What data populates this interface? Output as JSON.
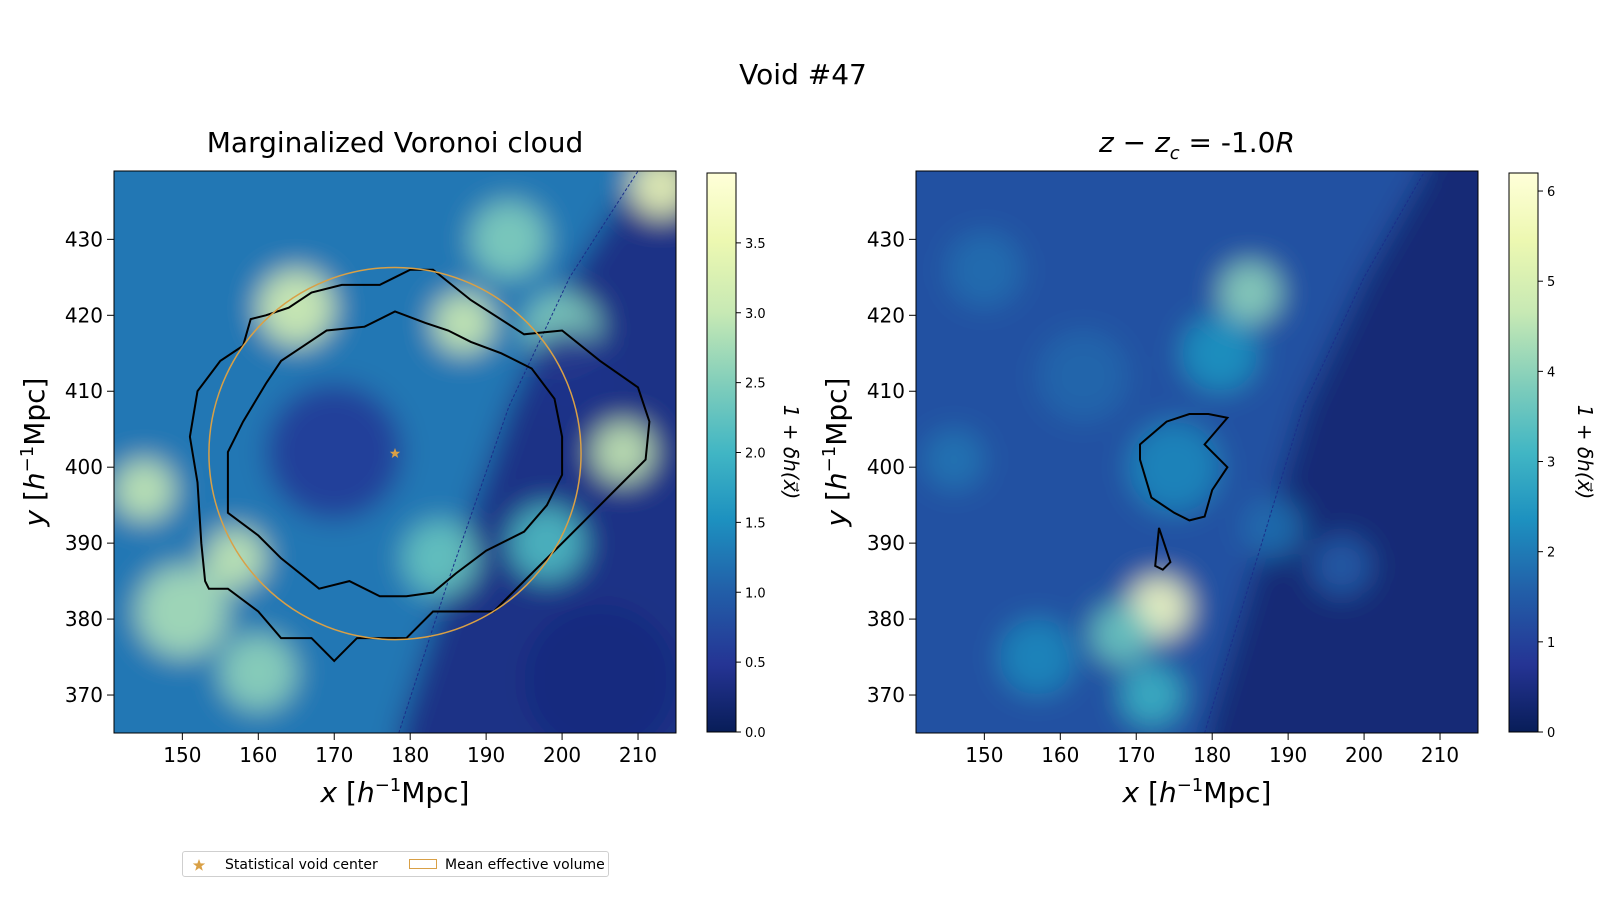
{
  "figure": {
    "suptitle": "Void #47"
  },
  "chart_data": [
    {
      "type": "heatmap",
      "title": "Marginalized Voronoi cloud",
      "xlabel_var": "x",
      "ylabel_var": "y",
      "axis_unit_open": "[",
      "axis_unit_base": "h",
      "axis_unit_exp": "−1",
      "axis_unit_tail": "Mpc]",
      "xlim": [
        141,
        215
      ],
      "ylim": [
        365,
        439
      ],
      "x_ticks": [
        150,
        160,
        170,
        180,
        190,
        200,
        210
      ],
      "y_ticks": [
        370,
        380,
        390,
        400,
        410,
        420,
        430
      ],
      "colorbar": {
        "label": "1 + δh(x⃗)",
        "range": [
          0.0,
          4.0
        ],
        "ticks": [
          0.0,
          0.5,
          1.0,
          1.5,
          2.0,
          2.5,
          3.0,
          3.5
        ],
        "tick_labels": [
          "0.0",
          "0.5",
          "1.0",
          "1.5",
          "2.0",
          "2.5",
          "3.0",
          "3.5"
        ]
      },
      "void_center": {
        "x": 178,
        "y": 401.8
      },
      "mean_effective_volume_circle": {
        "cx": 178,
        "cy": 401.8,
        "r": 24.5
      },
      "survey_boundary": [
        [
          178.5,
          365
        ],
        [
          185,
          385
        ],
        [
          193,
          408
        ],
        [
          201,
          425
        ],
        [
          210,
          439
        ]
      ],
      "contours": [
        [
          [
            153.5,
            384
          ],
          [
            156,
            384
          ],
          [
            160,
            381
          ],
          [
            163,
            377.5
          ],
          [
            167,
            377.5
          ],
          [
            170,
            374.5
          ],
          [
            173,
            377.5
          ],
          [
            176.5,
            377.5
          ],
          [
            179.5,
            377.5
          ],
          [
            183,
            381
          ],
          [
            186,
            381
          ],
          [
            191,
            381
          ],
          [
            196,
            386
          ],
          [
            203,
            393
          ],
          [
            207,
            397
          ],
          [
            211,
            401
          ],
          [
            211.5,
            406
          ],
          [
            210,
            410.5
          ],
          [
            205,
            414
          ],
          [
            200,
            418
          ],
          [
            195,
            417.5
          ],
          [
            188,
            422
          ],
          [
            183,
            426
          ],
          [
            180,
            426
          ],
          [
            178,
            425
          ],
          [
            176,
            424
          ],
          [
            171,
            424
          ],
          [
            167,
            423
          ],
          [
            164,
            421
          ],
          [
            161,
            420
          ],
          [
            159,
            419.5
          ],
          [
            158,
            416
          ],
          [
            155,
            414
          ],
          [
            152,
            410
          ],
          [
            151,
            404
          ],
          [
            152,
            398
          ],
          [
            152.5,
            390
          ],
          [
            153,
            385
          ],
          [
            153.5,
            384
          ]
        ],
        [
          [
            156,
            394
          ],
          [
            160,
            391
          ],
          [
            163,
            388
          ],
          [
            168,
            384
          ],
          [
            172,
            385
          ],
          [
            176,
            383
          ],
          [
            179.5,
            383
          ],
          [
            183,
            383.5
          ],
          [
            186,
            386
          ],
          [
            190,
            389
          ],
          [
            195,
            391.5
          ],
          [
            198,
            395
          ],
          [
            200,
            399
          ],
          [
            200,
            404
          ],
          [
            199,
            409
          ],
          [
            196,
            413
          ],
          [
            192,
            415
          ],
          [
            188,
            416.5
          ],
          [
            185,
            418
          ],
          [
            182,
            419
          ],
          [
            178,
            420.5
          ],
          [
            174,
            418.5
          ],
          [
            169,
            418
          ],
          [
            166,
            416
          ],
          [
            163,
            414
          ],
          [
            161,
            411
          ],
          [
            158,
            406
          ],
          [
            156,
            402
          ],
          [
            156,
            394
          ]
        ]
      ],
      "density_features": [
        {
          "x": 165,
          "y": 421,
          "s": 3.2,
          "r": 5
        },
        {
          "x": 145,
          "y": 397,
          "s": 3.0,
          "r": 4
        },
        {
          "x": 157,
          "y": 388,
          "s": 3.0,
          "r": 4
        },
        {
          "x": 150,
          "y": 381,
          "s": 2.8,
          "r": 6
        },
        {
          "x": 160,
          "y": 373,
          "s": 2.6,
          "r": 5
        },
        {
          "x": 187,
          "y": 419,
          "s": 3.1,
          "r": 4
        },
        {
          "x": 200,
          "y": 418,
          "s": 2.5,
          "r": 5
        },
        {
          "x": 208,
          "y": 402,
          "s": 3.0,
          "r": 4
        },
        {
          "x": 213,
          "y": 437,
          "s": 3.6,
          "r": 4
        },
        {
          "x": 184,
          "y": 388,
          "s": 2.3,
          "r": 5
        },
        {
          "x": 193,
          "y": 430,
          "s": 2.5,
          "r": 5
        },
        {
          "x": 198,
          "y": 390,
          "s": 2.1,
          "r": 5
        },
        {
          "x": 170,
          "y": 402,
          "s": 0.55,
          "r": 9
        },
        {
          "x": 205,
          "y": 372,
          "s": 0.3,
          "r": 10
        },
        {
          "x": 201,
          "y": 412,
          "s": 0.4,
          "r": 6
        }
      ]
    },
    {
      "type": "heatmap",
      "title_var": "z − z",
      "title_sub": "c",
      "title_value": " = -1.0",
      "title_suffix": "R",
      "xlabel_var": "x",
      "ylabel_var": "y",
      "axis_unit_open": "[",
      "axis_unit_base": "h",
      "axis_unit_exp": "−1",
      "axis_unit_tail": "Mpc]",
      "xlim": [
        141,
        215
      ],
      "ylim": [
        365,
        439
      ],
      "x_ticks": [
        150,
        160,
        170,
        180,
        190,
        200,
        210
      ],
      "y_ticks": [
        370,
        380,
        390,
        400,
        410,
        420,
        430
      ],
      "colorbar": {
        "label": "1 + δh(x⃗)",
        "range": [
          0,
          6.2
        ],
        "ticks": [
          0,
          1,
          2,
          3,
          4,
          5,
          6
        ],
        "tick_labels": [
          "0",
          "1",
          "2",
          "3",
          "4",
          "5",
          "6"
        ]
      },
      "survey_boundary": [
        [
          179,
          365
        ],
        [
          185,
          385
        ],
        [
          192,
          408
        ],
        [
          200,
          425
        ],
        [
          208,
          439
        ]
      ],
      "contours": [
        [
          [
            170.5,
            401
          ],
          [
            170.5,
            403
          ],
          [
            174,
            406
          ],
          [
            177,
            407
          ],
          [
            179.5,
            407
          ],
          [
            182,
            406.5
          ],
          [
            179,
            403
          ],
          [
            182,
            400
          ],
          [
            180,
            397
          ],
          [
            179,
            393.5
          ],
          [
            177,
            393
          ],
          [
            175,
            394
          ],
          [
            172,
            396
          ],
          [
            170.5,
            401
          ]
        ],
        [
          [
            172.5,
            387
          ],
          [
            173,
            392
          ],
          [
            174.5,
            387.5
          ],
          [
            173.5,
            386.5
          ],
          [
            172.5,
            387
          ]
        ]
      ],
      "density_features": [
        {
          "x": 173,
          "y": 381.5,
          "s": 5.8,
          "r": 4
        },
        {
          "x": 168,
          "y": 378,
          "s": 3.6,
          "r": 4
        },
        {
          "x": 185,
          "y": 423,
          "s": 4.0,
          "r": 4
        },
        {
          "x": 175,
          "y": 400,
          "s": 2.2,
          "r": 6
        },
        {
          "x": 181,
          "y": 415,
          "s": 2.4,
          "r": 5
        },
        {
          "x": 157,
          "y": 375,
          "s": 2.2,
          "r": 5
        },
        {
          "x": 146,
          "y": 401,
          "s": 1.9,
          "r": 4
        },
        {
          "x": 150,
          "y": 426,
          "s": 1.8,
          "r": 5
        },
        {
          "x": 163,
          "y": 412,
          "s": 1.7,
          "r": 6
        },
        {
          "x": 172,
          "y": 370,
          "s": 3.0,
          "r": 4
        },
        {
          "x": 188,
          "y": 392,
          "s": 1.8,
          "r": 4
        },
        {
          "x": 197,
          "y": 387,
          "s": 1.5,
          "r": 4
        }
      ]
    }
  ],
  "legend": {
    "items": [
      {
        "label": "Statistical void center",
        "marker": "star",
        "color": "#d9a046"
      },
      {
        "label": "Mean effective volume",
        "marker": "rect-outline",
        "color": "#d9a046"
      }
    ]
  },
  "colors": {
    "contour": "#000000",
    "circle": "#d9a046",
    "boundary": "#1a2f8a"
  }
}
